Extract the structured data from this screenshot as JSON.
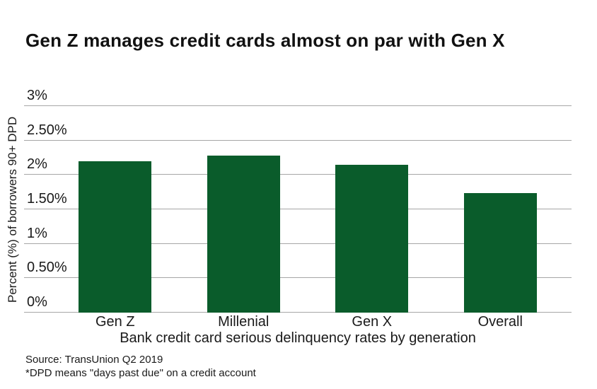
{
  "chart_data": {
    "type": "bar",
    "title": "Gen Z manages credit cards almost on par with Gen X",
    "categories": [
      "Gen Z",
      "Millenial",
      "Gen X",
      "Overall"
    ],
    "values": [
      2.2,
      2.28,
      2.15,
      1.74
    ],
    "xlabel": "Bank credit card serious delinquency rates by generation",
    "ylabel": "Percent (%) of borrowers 90+ DPD",
    "ylim": [
      0,
      3
    ],
    "yticks": [
      {
        "value": 0,
        "label": "0%"
      },
      {
        "value": 0.5,
        "label": "0.50%"
      },
      {
        "value": 1,
        "label": "1%"
      },
      {
        "value": 1.5,
        "label": "1.50%"
      },
      {
        "value": 2,
        "label": "2%"
      },
      {
        "value": 2.5,
        "label": "2.50%"
      },
      {
        "value": 3,
        "label": "3%"
      }
    ],
    "grid": true,
    "legend_position": "none",
    "bar_color": "#0a5c2b",
    "gridline_color": "#a6a6a6",
    "text_color": "#1a1a1a"
  },
  "footer": {
    "source": "Source: TransUnion Q2 2019",
    "footnote": "*DPD means \"days past due\" on a credit account"
  }
}
